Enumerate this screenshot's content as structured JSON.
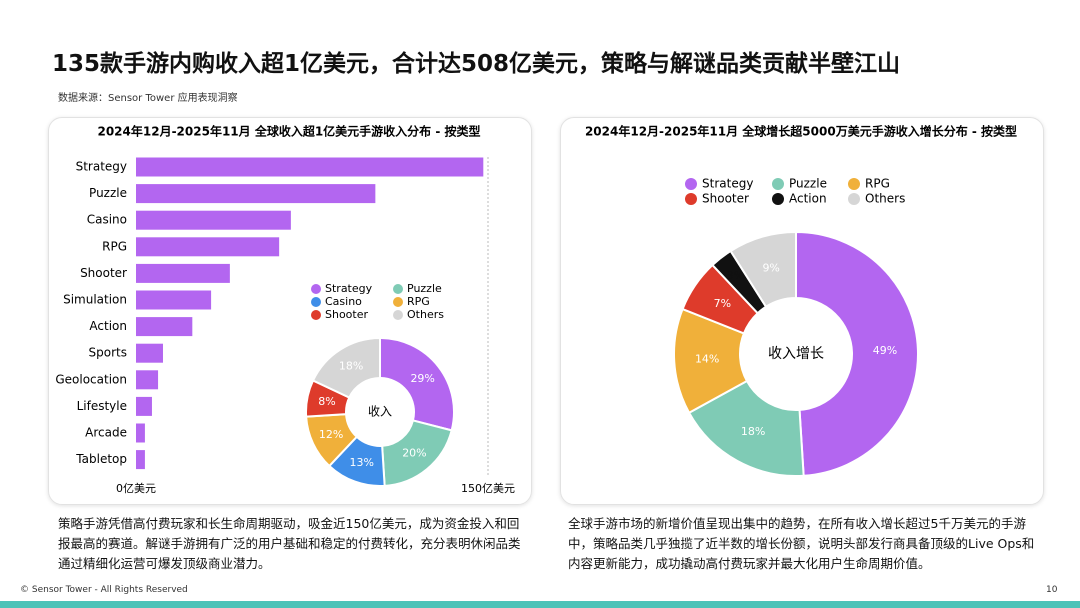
{
  "header": {
    "title": "135款手游内购收入超1亿美元，合计达508亿美元，策略与解谜品类贡献半壁江山",
    "source": "数据来源：Sensor Tower 应用表现洞察"
  },
  "chart_data": [
    {
      "type": "bar",
      "title": "2024年12月-2025年11月 全球收入超1亿美元手游收入分布 - 按类型",
      "categories": [
        "Strategy",
        "Puzzle",
        "Casino",
        "RPG",
        "Shooter",
        "Simulation",
        "Action",
        "Sports",
        "Geolocation",
        "Lifestyle",
        "Arcade",
        "Tabletop"
      ],
      "values": [
        148,
        102,
        66,
        61,
        40,
        32,
        24,
        11.5,
        9.4,
        6.8,
        3.8,
        3.8
      ],
      "color": "#b366f0",
      "xlim": [
        0,
        150
      ],
      "xticks": [
        {
          "value": 0,
          "label": "0亿美元"
        },
        {
          "value": 150,
          "label": "150亿美元"
        }
      ],
      "grid": true
    },
    {
      "type": "pie",
      "center_label": "收入",
      "categories": [
        "Strategy",
        "Puzzle",
        "Casino",
        "RPG",
        "Shooter",
        "Others"
      ],
      "values": [
        29,
        20,
        13,
        12,
        8,
        18
      ],
      "value_labels": [
        "29%",
        "20%",
        "13%",
        "12%",
        "8%",
        "18%"
      ],
      "colors": [
        "#b366f0",
        "#7fcbb5",
        "#3f8ee8",
        "#f0b03a",
        "#de3b2b",
        "#d6d6d6"
      ]
    },
    {
      "type": "pie",
      "title": "2024年12月-2025年11月 全球增长超5000万美元手游收入增长分布 - 按类型",
      "center_label": "收入增长",
      "categories": [
        "Strategy",
        "Puzzle",
        "RPG",
        "Shooter",
        "Action",
        "Others"
      ],
      "values": [
        49,
        18,
        14,
        7,
        3,
        9
      ],
      "value_labels": [
        "49%",
        "18%",
        "14%",
        "7%",
        "3%",
        "9%"
      ],
      "colors": [
        "#b366f0",
        "#7fcbb5",
        "#f0b03a",
        "#de3b2b",
        "#111111",
        "#d6d6d6"
      ]
    }
  ],
  "descriptions": [
    "策略手游凭借高付费玩家和长生命周期驱动，吸金近150亿美元，成为资金投入和回报最高的赛道。解谜手游拥有广泛的用户基础和稳定的付费转化，充分表明休闲品类通过精细化运营可爆发顶级商业潜力。",
    "全球手游市场的新增价值呈现出集中的趋势，在所有收入增长超过5千万美元的手游中，策略品类几乎独揽了近半数的增长份额，说明头部发行商具备顶级的Live Ops和内容更新能力，成功撬动高付费玩家并最大化用户生命周期价值。"
  ],
  "footer": {
    "copyright": "© Sensor Tower - All Rights Reserved",
    "page": "10"
  }
}
